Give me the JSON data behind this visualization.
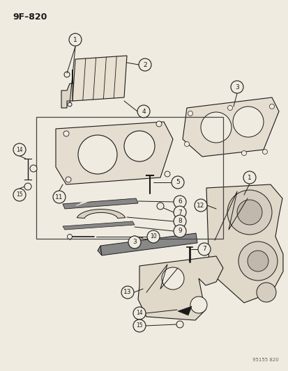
{
  "title": "9F–820",
  "watermark": "95155 820",
  "bg_color": "#f0ebe0",
  "line_color": "#1a1a1a",
  "circle_bg": "#f0ebe0",
  "label_circle_r": 0.022
}
